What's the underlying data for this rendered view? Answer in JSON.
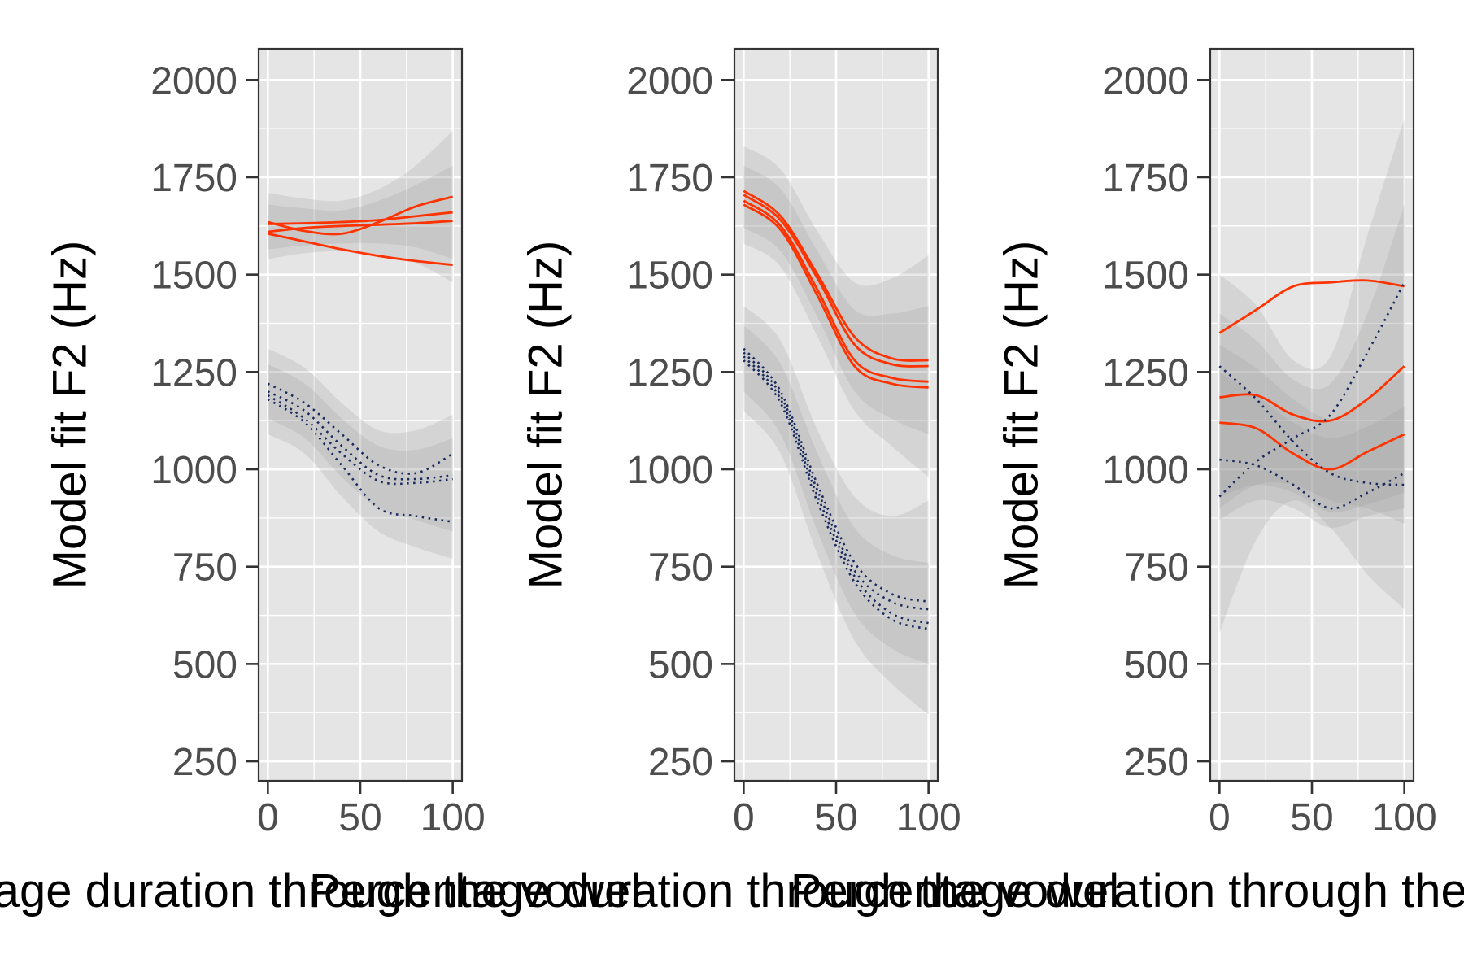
{
  "chart_data": [
    {
      "type": "line",
      "panel": "left",
      "ylabel": "Model fit F2 (Hz)",
      "xlabel": "Percentage duration through the vowel",
      "xlim": [
        -5,
        105
      ],
      "ylim": [
        200,
        2080
      ],
      "x_ticks": [
        0,
        50,
        100
      ],
      "y_ticks": [
        250,
        500,
        750,
        1000,
        1250,
        1500,
        1750,
        2000
      ],
      "grid": true,
      "x_grid_minor": [
        25,
        75
      ],
      "y_grid_minor": [
        375,
        625,
        875,
        1125,
        1375,
        1625,
        1875
      ],
      "series": [
        {
          "group": "a",
          "x": [
            0,
            20,
            40,
            60,
            80,
            100
          ],
          "y": [
            1635,
            1612,
            1605,
            1635,
            1675,
            1700
          ]
        },
        {
          "group": "a",
          "x": [
            0,
            20,
            40,
            60,
            80,
            100
          ],
          "y": [
            1630,
            1632,
            1635,
            1640,
            1650,
            1660
          ]
        },
        {
          "group": "a",
          "x": [
            0,
            20,
            40,
            60,
            80,
            100
          ],
          "y": [
            1610,
            1620,
            1625,
            1628,
            1632,
            1638
          ]
        },
        {
          "group": "a",
          "x": [
            0,
            20,
            40,
            60,
            80,
            100
          ],
          "y": [
            1605,
            1585,
            1565,
            1548,
            1535,
            1525
          ]
        },
        {
          "group": "b",
          "x": [
            0,
            20,
            40,
            60,
            80,
            100
          ],
          "y": [
            1220,
            1170,
            1090,
            1010,
            990,
            1040
          ]
        },
        {
          "group": "b",
          "x": [
            0,
            20,
            40,
            60,
            80,
            100
          ],
          "y": [
            1200,
            1150,
            1060,
            985,
            975,
            985
          ]
        },
        {
          "group": "b",
          "x": [
            0,
            20,
            40,
            60,
            80,
            100
          ],
          "y": [
            1190,
            1130,
            1040,
            970,
            965,
            975
          ]
        },
        {
          "group": "b",
          "x": [
            0,
            20,
            40,
            60,
            80,
            100
          ],
          "y": [
            1180,
            1120,
            1010,
            900,
            880,
            865
          ]
        }
      ],
      "bands": [
        {
          "group": "a",
          "x": [
            0,
            20,
            40,
            60,
            80,
            100
          ],
          "lower": [
            1540,
            1555,
            1560,
            1550,
            1530,
            1480
          ],
          "upper": [
            1710,
            1695,
            1690,
            1720,
            1780,
            1870
          ]
        },
        {
          "group": "a",
          "x": [
            0,
            20,
            40,
            60,
            80,
            100
          ],
          "lower": [
            1565,
            1575,
            1580,
            1580,
            1570,
            1540
          ],
          "upper": [
            1680,
            1670,
            1665,
            1690,
            1730,
            1780
          ]
        },
        {
          "group": "b",
          "x": [
            0,
            20,
            40,
            60,
            80,
            100
          ],
          "lower": [
            1090,
            1040,
            930,
            840,
            800,
            770
          ],
          "upper": [
            1310,
            1260,
            1170,
            1100,
            1100,
            1140
          ]
        },
        {
          "group": "b",
          "x": [
            0,
            20,
            40,
            60,
            80,
            100
          ],
          "lower": [
            1130,
            1080,
            980,
            900,
            870,
            840
          ],
          "upper": [
            1270,
            1220,
            1130,
            1060,
            1050,
            1080
          ]
        }
      ]
    },
    {
      "type": "line",
      "panel": "middle",
      "ylabel": "Model fit F2 (Hz)",
      "xlabel": "Percentage duration through the vowel",
      "xlim": [
        -5,
        105
      ],
      "ylim": [
        200,
        2080
      ],
      "x_ticks": [
        0,
        50,
        100
      ],
      "y_ticks": [
        250,
        500,
        750,
        1000,
        1250,
        1500,
        1750,
        2000
      ],
      "grid": true,
      "x_grid_minor": [
        25,
        75
      ],
      "y_grid_minor": [
        375,
        625,
        875,
        1125,
        1375,
        1625,
        1875
      ],
      "series": [
        {
          "group": "a",
          "x": [
            0,
            20,
            40,
            60,
            80,
            100
          ],
          "y": [
            1715,
            1650,
            1500,
            1340,
            1285,
            1280
          ]
        },
        {
          "group": "a",
          "x": [
            0,
            20,
            40,
            60,
            80,
            100
          ],
          "y": [
            1705,
            1640,
            1490,
            1320,
            1270,
            1265
          ]
        },
        {
          "group": "a",
          "x": [
            0,
            20,
            40,
            60,
            80,
            100
          ],
          "y": [
            1690,
            1625,
            1460,
            1280,
            1235,
            1225
          ]
        },
        {
          "group": "a",
          "x": [
            0,
            20,
            40,
            60,
            80,
            100
          ],
          "y": [
            1680,
            1615,
            1445,
            1265,
            1220,
            1210
          ]
        },
        {
          "group": "b",
          "x": [
            0,
            20,
            40,
            60,
            80,
            100
          ],
          "y": [
            1310,
            1200,
            960,
            760,
            680,
            660
          ]
        },
        {
          "group": "b",
          "x": [
            0,
            20,
            40,
            60,
            80,
            100
          ],
          "y": [
            1300,
            1190,
            945,
            740,
            660,
            640
          ]
        },
        {
          "group": "b",
          "x": [
            0,
            20,
            40,
            60,
            80,
            100
          ],
          "y": [
            1290,
            1180,
            930,
            725,
            630,
            605
          ]
        },
        {
          "group": "b",
          "x": [
            0,
            20,
            40,
            60,
            80,
            100
          ],
          "y": [
            1280,
            1170,
            915,
            710,
            615,
            590
          ]
        }
      ],
      "bands": [
        {
          "group": "a",
          "x": [
            0,
            20,
            40,
            60,
            80,
            100
          ],
          "lower": [
            1580,
            1520,
            1340,
            1150,
            1060,
            980
          ],
          "upper": [
            1830,
            1770,
            1610,
            1480,
            1490,
            1550
          ]
        },
        {
          "group": "a",
          "x": [
            0,
            20,
            40,
            60,
            80,
            100
          ],
          "lower": [
            1620,
            1560,
            1390,
            1200,
            1130,
            1090
          ],
          "upper": [
            1780,
            1720,
            1560,
            1410,
            1400,
            1420
          ]
        },
        {
          "group": "b",
          "x": [
            0,
            20,
            40,
            60,
            80,
            100
          ],
          "lower": [
            1150,
            1040,
            780,
            560,
            450,
            370
          ],
          "upper": [
            1420,
            1330,
            1100,
            930,
            880,
            920
          ]
        },
        {
          "group": "b",
          "x": [
            0,
            20,
            40,
            60,
            80,
            100
          ],
          "lower": [
            1200,
            1090,
            840,
            630,
            540,
            500
          ],
          "upper": [
            1370,
            1270,
            1040,
            850,
            780,
            760
          ]
        }
      ]
    },
    {
      "type": "line",
      "panel": "right",
      "ylabel": "Model fit F2 (Hz)",
      "xlabel": "Percentage duration through the vowel",
      "xlim": [
        -5,
        105
      ],
      "ylim": [
        200,
        2080
      ],
      "x_ticks": [
        0,
        50,
        100
      ],
      "y_ticks": [
        250,
        500,
        750,
        1000,
        1250,
        1500,
        1750,
        2000
      ],
      "grid": true,
      "x_grid_minor": [
        25,
        75
      ],
      "y_grid_minor": [
        375,
        625,
        875,
        1125,
        1375,
        1625,
        1875
      ],
      "series": [
        {
          "group": "a",
          "x": [
            0,
            20,
            40,
            60,
            80,
            100
          ],
          "y": [
            1350,
            1410,
            1470,
            1480,
            1485,
            1470
          ]
        },
        {
          "group": "a",
          "x": [
            0,
            20,
            40,
            60,
            80,
            100
          ],
          "y": [
            1185,
            1190,
            1140,
            1125,
            1180,
            1265
          ]
        },
        {
          "group": "a",
          "x": [
            0,
            20,
            40,
            60,
            80,
            100
          ],
          "y": [
            1120,
            1105,
            1040,
            1000,
            1045,
            1090
          ]
        },
        {
          "group": "b",
          "x": [
            0,
            20,
            40,
            60,
            80,
            100
          ],
          "y": [
            1265,
            1180,
            1070,
            990,
            965,
            960
          ]
        },
        {
          "group": "b",
          "x": [
            0,
            20,
            40,
            60,
            80,
            100
          ],
          "y": [
            1025,
            1010,
            960,
            900,
            940,
            990
          ]
        },
        {
          "group": "b",
          "x": [
            0,
            20,
            40,
            60,
            80,
            100
          ],
          "y": [
            930,
            1020,
            1080,
            1140,
            1300,
            1480
          ]
        }
      ],
      "bands": [
        {
          "group": "a",
          "x": [
            0,
            20,
            40,
            60,
            80,
            100
          ],
          "lower": [
            580,
            820,
            920,
            850,
            730,
            640
          ],
          "upper": [
            1500,
            1420,
            1280,
            1290,
            1600,
            1900
          ]
        },
        {
          "group": "a",
          "x": [
            0,
            20,
            40,
            60,
            80,
            100
          ],
          "lower": [
            900,
            960,
            960,
            920,
            900,
            860
          ],
          "upper": [
            1400,
            1330,
            1230,
            1220,
            1400,
            1680
          ]
        },
        {
          "group": "b",
          "x": [
            0,
            20,
            40,
            60,
            80,
            100
          ],
          "lower": [
            870,
            920,
            900,
            850,
            880,
            900
          ],
          "upper": [
            1320,
            1260,
            1180,
            1130,
            1180,
            1250
          ]
        },
        {
          "group": "b",
          "x": [
            0,
            20,
            40,
            60,
            80,
            100
          ],
          "lower": [
            930,
            960,
            940,
            890,
            910,
            940
          ],
          "upper": [
            1250,
            1190,
            1120,
            1080,
            1110,
            1160
          ]
        }
      ]
    }
  ],
  "colors": {
    "panel_background": "#e5e5e5",
    "grid": "#ffffff",
    "border": "#333333",
    "group_a_line": "#ff3300",
    "group_b_line": "#1a2a5e",
    "band_fill": "#999999",
    "tick_label": "#4d4d4d",
    "axis_title": "#000000"
  }
}
